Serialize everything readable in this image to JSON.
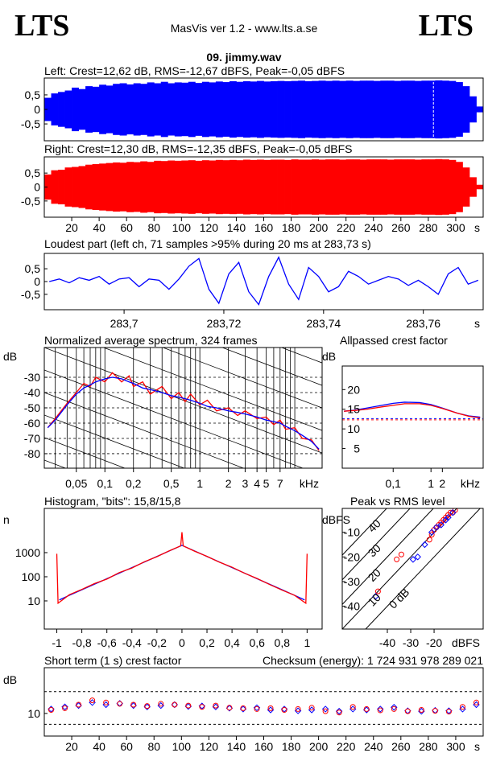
{
  "header": {
    "logo_left": "LTS",
    "logo_right": "LTS",
    "title": "MasVis ver 1.2 - www.lts.a.se",
    "file": "09. jimmy.wav"
  },
  "chart_data": [
    {
      "type": "envelope",
      "title": "Left: Crest=12,62 dB, RMS=-12,67 dBFS, Peak=-0,05 dBFS",
      "xlim": [
        0,
        320
      ],
      "ylim": [
        -1.08,
        1.08
      ],
      "yticks": [
        {
          "value": 0.5,
          "label": "0,5"
        },
        0,
        {
          "value": -0.5,
          "label": "-0,5"
        }
      ],
      "marker_x": 283.73,
      "x": [
        0,
        5,
        10,
        15,
        20,
        25,
        30,
        35,
        40,
        45,
        50,
        55,
        60,
        65,
        70,
        75,
        80,
        85,
        90,
        95,
        100,
        105,
        110,
        115,
        120,
        125,
        130,
        135,
        140,
        145,
        150,
        155,
        160,
        165,
        170,
        175,
        180,
        185,
        190,
        195,
        200,
        205,
        210,
        215,
        220,
        225,
        230,
        235,
        240,
        245,
        250,
        255,
        260,
        265,
        270,
        275,
        280,
        285,
        290,
        295,
        300,
        305,
        310,
        315
      ],
      "series": [
        {
          "color": "#0000ff",
          "values": [
            0.4,
            0.55,
            0.6,
            0.65,
            0.75,
            0.7,
            0.8,
            0.78,
            0.85,
            0.82,
            0.88,
            0.9,
            0.86,
            0.9,
            0.88,
            0.93,
            0.9,
            0.95,
            0.9,
            0.93,
            0.92,
            0.95,
            0.91,
            0.95,
            0.93,
            0.96,
            0.94,
            0.97,
            0.95,
            0.97,
            0.96,
            0.98,
            0.96,
            0.97,
            0.98,
            0.97,
            0.98,
            0.99,
            0.97,
            0.98,
            0.99,
            0.98,
            0.99,
            0.98,
            0.99,
            0.98,
            0.99,
            0.99,
            0.98,
            0.99,
            0.99,
            0.98,
            0.99,
            0.99,
            0.98,
            0.99,
            0.99,
            1.0,
            0.99,
            0.98,
            0.94,
            0.8,
            0.45,
            0.1
          ]
        }
      ]
    },
    {
      "type": "envelope",
      "title": "Right: Crest=12,30 dB, RMS=-12,35 dBFS, Peak=-0,05 dBFS",
      "xlim": [
        0,
        320
      ],
      "ylim": [
        -1.08,
        1.08
      ],
      "yticks": [
        {
          "value": 0.5,
          "label": "0,5"
        },
        0,
        {
          "value": -0.5,
          "label": "-0,5"
        }
      ],
      "xticks": [
        20,
        40,
        60,
        80,
        100,
        120,
        140,
        160,
        180,
        200,
        220,
        240,
        260,
        280,
        300
      ],
      "xlabel": "s",
      "x": [
        0,
        5,
        10,
        15,
        20,
        25,
        30,
        35,
        40,
        45,
        50,
        55,
        60,
        65,
        70,
        75,
        80,
        85,
        90,
        95,
        100,
        105,
        110,
        115,
        120,
        125,
        130,
        135,
        140,
        145,
        150,
        155,
        160,
        165,
        170,
        175,
        180,
        185,
        190,
        195,
        200,
        205,
        210,
        215,
        220,
        225,
        230,
        235,
        240,
        245,
        250,
        255,
        260,
        265,
        270,
        275,
        280,
        285,
        290,
        295,
        300,
        305,
        310,
        315
      ],
      "series": [
        {
          "color": "#ff0000",
          "values": [
            0.45,
            0.6,
            0.62,
            0.7,
            0.72,
            0.75,
            0.8,
            0.82,
            0.84,
            0.86,
            0.88,
            0.87,
            0.9,
            0.89,
            0.92,
            0.9,
            0.94,
            0.93,
            0.95,
            0.94,
            0.95,
            0.96,
            0.94,
            0.96,
            0.95,
            0.97,
            0.96,
            0.97,
            0.96,
            0.98,
            0.97,
            0.98,
            0.97,
            0.98,
            0.98,
            0.97,
            0.99,
            0.98,
            0.98,
            0.99,
            0.98,
            0.99,
            0.99,
            0.98,
            0.99,
            0.99,
            0.98,
            0.99,
            0.99,
            0.99,
            0.98,
            0.99,
            0.99,
            0.99,
            0.98,
            0.99,
            0.99,
            1.0,
            0.99,
            0.97,
            0.9,
            0.7,
            0.35,
            0.08
          ]
        }
      ]
    },
    {
      "type": "line",
      "title": "Loudest part (left  ch, 71 samples >95% during 20 ms at 283,73 s)",
      "xlim": [
        283.684,
        283.772
      ],
      "ylim": [
        -1.1,
        1.1
      ],
      "yticks": [
        {
          "value": 0.5,
          "label": "0,5"
        },
        0,
        {
          "value": -0.5,
          "label": "-0,5"
        }
      ],
      "xticks": [
        {
          "value": 283.7,
          "label": "283,7"
        },
        {
          "value": 283.72,
          "label": "283,72"
        },
        {
          "value": 283.74,
          "label": "283,74"
        },
        {
          "value": 283.76,
          "label": "283,76"
        }
      ],
      "xlabel": "s",
      "x": [
        283.685,
        283.687,
        283.689,
        283.691,
        283.693,
        283.695,
        283.697,
        283.699,
        283.701,
        283.703,
        283.705,
        283.707,
        283.709,
        283.711,
        283.713,
        283.715,
        283.717,
        283.719,
        283.721,
        283.723,
        283.725,
        283.727,
        283.729,
        283.731,
        283.733,
        283.735,
        283.737,
        283.739,
        283.741,
        283.743,
        283.745,
        283.747,
        283.749,
        283.751,
        283.753,
        283.755,
        283.757,
        283.759,
        283.761,
        283.763,
        283.765,
        283.767,
        283.769,
        283.771
      ],
      "series": [
        {
          "color": "#0000ff",
          "values": [
            0,
            0.1,
            -0.05,
            0.15,
            0.05,
            0.2,
            -0.1,
            0.1,
            0.15,
            -0.2,
            0.1,
            0.05,
            -0.3,
            0.1,
            0.6,
            0.9,
            -0.3,
            -0.85,
            0.3,
            0.75,
            -0.4,
            -0.9,
            0.2,
            0.95,
            -0.1,
            -0.7,
            0.55,
            0.2,
            -0.4,
            -0.2,
            0.4,
            0.2,
            -0.1,
            0.05,
            0.2,
            0.1,
            -0.15,
            0.05,
            -0.2,
            -0.5,
            0.3,
            0.55,
            -0.1,
            0.05
          ]
        }
      ]
    },
    {
      "type": "line",
      "title": "Normalized average spectrum, 324 frames",
      "ylabel": "dB",
      "xlabel": "kHz",
      "xscale": "log",
      "xlim": [
        0.023,
        19.4
      ],
      "ylim": [
        -89.5,
        -10.5
      ],
      "grid": true,
      "yticks": [
        -30,
        -40,
        -50,
        -60,
        -70,
        -80
      ],
      "xticks": [
        {
          "value": 0.05,
          "label": "0,05"
        },
        {
          "value": 0.1,
          "label": "0,1"
        },
        {
          "value": 0.2,
          "label": "0,2"
        },
        {
          "value": 0.5,
          "label": "0,5"
        },
        1,
        2,
        3,
        4,
        5,
        7
      ],
      "xgrid": [
        0.03,
        0.04,
        0.06,
        0.07,
        0.08,
        0.09,
        0.3,
        0.4,
        0.6,
        0.7,
        0.8,
        0.9,
        6,
        8,
        9,
        10
      ],
      "x": [
        0.025,
        0.03,
        0.04,
        0.05,
        0.06,
        0.07,
        0.08,
        0.1,
        0.12,
        0.15,
        0.18,
        0.2,
        0.25,
        0.3,
        0.4,
        0.5,
        0.6,
        0.7,
        0.8,
        1,
        1.2,
        1.5,
        2,
        2.5,
        3,
        4,
        5,
        6,
        7,
        8,
        10,
        12,
        15,
        18
      ],
      "series": [
        {
          "color": "#ff0000",
          "values": [
            -63,
            -57,
            -47,
            -40,
            -34,
            -36,
            -30,
            -33,
            -27,
            -33,
            -29,
            -36,
            -33,
            -41,
            -36,
            -44,
            -40,
            -46,
            -41,
            -48,
            -45,
            -52,
            -50,
            -55,
            -52,
            -57,
            -56,
            -61,
            -58,
            -64,
            -63,
            -70,
            -71,
            -78
          ]
        },
        {
          "color": "#0000ff",
          "values": [
            -63,
            -58,
            -48,
            -41,
            -37,
            -35,
            -33,
            -31,
            -30,
            -31,
            -33,
            -34,
            -37,
            -38,
            -40,
            -42,
            -43,
            -44,
            -45,
            -47,
            -49,
            -50,
            -52,
            -53,
            -54,
            -56,
            -58,
            -59,
            -60,
            -62,
            -65,
            -68,
            -72,
            -77
          ]
        }
      ]
    },
    {
      "type": "line",
      "title": "Allpassed crest factor",
      "ylabel": "dB",
      "xlabel": "kHz",
      "xscale": "log",
      "xlim": [
        0.0045,
        24
      ],
      "ylim": [
        0,
        26
      ],
      "yticks": [
        20,
        15,
        10,
        5
      ],
      "xticks": [
        {
          "value": 0.1,
          "label": "0,1"
        },
        1,
        2
      ],
      "hlines": [
        {
          "value": 12.62,
          "color": "#0000ff"
        },
        {
          "value": 12.3,
          "color": "#ff0000"
        }
      ],
      "x": [
        0.005,
        0.01,
        0.02,
        0.05,
        0.1,
        0.2,
        0.5,
        1,
        2,
        5,
        10,
        20
      ],
      "series": [
        {
          "color": "#0000ff",
          "values": [
            14.5,
            14.8,
            15.3,
            16,
            16.5,
            16.8,
            16.7,
            16.2,
            15.3,
            14,
            13.3,
            13
          ]
        },
        {
          "color": "#ff0000",
          "values": [
            14.5,
            14.7,
            15,
            15.6,
            16,
            16.4,
            16.4,
            16,
            15.2,
            14,
            13.2,
            12.8
          ]
        }
      ]
    },
    {
      "type": "line",
      "title": "Histogram, \"bits\": 15,8/15,8",
      "ylabel": "n",
      "yscale": "log",
      "xlim": [
        -1.1,
        1.12
      ],
      "ylim": [
        0.68,
        68000
      ],
      "yticks": [
        1000,
        100,
        10
      ],
      "xticks": [
        -1,
        {
          "value": -0.8,
          "label": "-0,8"
        },
        {
          "value": -0.6,
          "label": "-0,6"
        },
        {
          "value": -0.4,
          "label": "-0,4"
        },
        {
          "value": -0.2,
          "label": "-0,2"
        },
        0,
        {
          "value": 0.2,
          "label": "0,2"
        },
        {
          "value": 0.4,
          "label": "0,4"
        },
        {
          "value": 0.6,
          "label": "0,6"
        },
        {
          "value": 0.8,
          "label": "0,8"
        },
        1
      ],
      "series": [
        {
          "color": "#0000ff",
          "x": [
            -0.98,
            -0.9,
            -0.8,
            -0.7,
            -0.6,
            -0.5,
            -0.4,
            -0.3,
            -0.2,
            -0.1,
            0,
            0.1,
            0.2,
            0.3,
            0.4,
            0.5,
            0.6,
            0.7,
            0.8,
            0.9,
            0.98
          ],
          "values": [
            11,
            17,
            29,
            49,
            83,
            142,
            240,
            408,
            693,
            1178,
            2000,
            1178,
            693,
            408,
            240,
            142,
            83,
            49,
            29,
            17,
            11
          ]
        },
        {
          "color": "#ff0000",
          "x": [
            -1,
            -0.99,
            -0.9,
            -0.8,
            -0.7,
            -0.6,
            -0.5,
            -0.4,
            -0.3,
            -0.2,
            -0.1,
            -0.01,
            0,
            0.01,
            0.1,
            0.2,
            0.3,
            0.4,
            0.5,
            0.6,
            0.7,
            0.8,
            0.9,
            0.99,
            1
          ],
          "values": [
            900,
            8,
            18,
            30,
            52,
            80,
            150,
            230,
            420,
            680,
            1200,
            1900,
            7000,
            1900,
            1150,
            700,
            400,
            250,
            140,
            85,
            48,
            28,
            17,
            8,
            900
          ]
        }
      ]
    },
    {
      "type": "scatter",
      "title": "Peak vs RMS level",
      "ylabel": "dBFS",
      "xlabel": "dBFS",
      "xlim": [
        -59.3,
        1
      ],
      "ylim": [
        -49.3,
        -0.3
      ],
      "yticks": [
        -10,
        -20,
        -30,
        -40
      ],
      "xticks": [
        -40,
        -30,
        -20
      ],
      "diagonals": [
        40,
        30,
        20,
        10,
        {
          "value": 0,
          "label": "0 dB"
        }
      ],
      "series": [
        {
          "color": "#ff0000",
          "marker": "circle",
          "x": [
            -44,
            -36,
            -34,
            -22,
            -21,
            -20,
            -19,
            -18,
            -17,
            -16,
            -15,
            -14,
            -13,
            -12,
            -11
          ],
          "values": [
            -34,
            -21,
            -19,
            -13,
            -11,
            -9,
            -8,
            -7,
            -6,
            -5,
            -4,
            -3,
            -2,
            -2,
            -1
          ]
        },
        {
          "color": "#0000ff",
          "marker": "diamond",
          "x": [
            -45,
            -29,
            -27,
            -24,
            -21,
            -19,
            -17,
            -15,
            -14,
            -12
          ],
          "values": [
            -36,
            -21,
            -20,
            -15,
            -10,
            -8,
            -7,
            -5,
            -4,
            -2
          ]
        }
      ]
    },
    {
      "type": "scatter",
      "title": "Short term (1 s) crest factor",
      "annotation": "Checksum (energy):  1 724 931 978 289 021",
      "ylabel": "dB",
      "xlabel": "s",
      "xlim": [
        0,
        320
      ],
      "ylim": [
        4.8,
        20.5
      ],
      "yticks": [
        10
      ],
      "xticks": [
        20,
        40,
        60,
        80,
        100,
        120,
        140,
        160,
        180,
        200,
        220,
        240,
        260,
        280,
        300
      ],
      "hlines": [
        {
          "value": 15,
          "color": "#000000"
        },
        {
          "value": 7.5,
          "color": "#000000"
        }
      ],
      "x": [
        5,
        15,
        25,
        35,
        45,
        55,
        65,
        75,
        85,
        95,
        105,
        115,
        125,
        135,
        145,
        155,
        165,
        175,
        185,
        195,
        205,
        215,
        225,
        235,
        245,
        255,
        265,
        275,
        285,
        295,
        305,
        315
      ],
      "series": [
        {
          "color": "#0000ff",
          "marker": "diamond",
          "values": [
            11,
            11.5,
            11.8,
            12.5,
            12,
            12.3,
            11.8,
            11.5,
            11.8,
            12,
            11.6,
            11.7,
            11.5,
            11.2,
            11,
            11.3,
            10.8,
            11,
            10.6,
            10.8,
            11,
            10.5,
            11,
            10.8,
            11,
            11.4,
            10.6,
            10.5,
            10.7,
            10.6,
            11,
            12
          ]
        },
        {
          "color": "#ff0000",
          "marker": "circle",
          "values": [
            10.8,
            11.2,
            12,
            13,
            12.5,
            12.2,
            12,
            11.7,
            12.2,
            12,
            11.8,
            11.5,
            11.8,
            11.3,
            11.2,
            11,
            11.2,
            10.8,
            11,
            11.3,
            10.5,
            10.2,
            11.5,
            11,
            10.7,
            11,
            10.5,
            10.8,
            10.6,
            10.4,
            11.5,
            12.5
          ]
        }
      ]
    }
  ]
}
